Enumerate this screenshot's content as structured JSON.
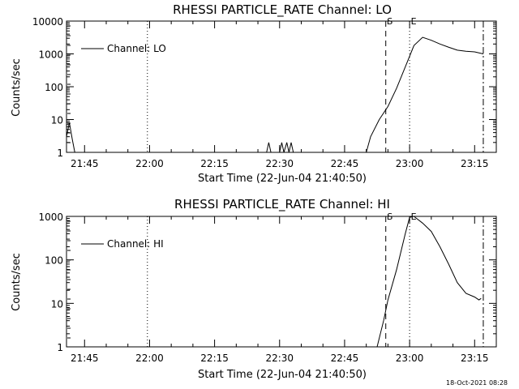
{
  "chart_data": [
    {
      "type": "line",
      "title": "RHESSI PARTICLE_RATE Channel: LO",
      "xlabel": "Start Time (22-Jun-04 21:40:50)",
      "ylabel": "Counts/sec",
      "yscale": "log",
      "ylim": [
        1,
        10000
      ],
      "xlim": [
        "21:40:50",
        "23:20:00"
      ],
      "x_tick_labels": [
        "21:45",
        "22:00",
        "22:15",
        "22:30",
        "22:45",
        "23:00",
        "23:15"
      ],
      "y_tick_labels": [
        "1",
        "10",
        "100",
        "1000",
        "10000"
      ],
      "legend": {
        "placement": "top-left",
        "entries": [
          "Channel: LO"
        ]
      },
      "markers": [
        {
          "label": "S",
          "time": "22:54:30",
          "style": "dashed"
        },
        {
          "label": "E",
          "time": "23:00:00",
          "style": "dotted"
        },
        {
          "label": "",
          "time": "21:59:30",
          "style": "dotted"
        },
        {
          "label": "",
          "time": "23:17:00",
          "style": "dash-dot"
        }
      ],
      "series": [
        {
          "name": "Channel: LO",
          "points": [
            [
              "21:40:50",
              3
            ],
            [
              "21:41:30",
              8
            ],
            [
              "21:42:10",
              2.5
            ],
            [
              "21:42:45",
              1
            ],
            [
              "22:27:00",
              1
            ],
            [
              "22:27:30",
              2
            ],
            [
              "22:28:00",
              1
            ],
            [
              "22:30:00",
              1
            ],
            [
              "22:30:30",
              2
            ],
            [
              "22:31:00",
              1
            ],
            [
              "22:31:40",
              2
            ],
            [
              "22:32:10",
              1
            ],
            [
              "22:32:40",
              2
            ],
            [
              "22:33:10",
              1
            ],
            [
              "22:50:00",
              1
            ],
            [
              "22:51:00",
              3
            ],
            [
              "22:53:00",
              10
            ],
            [
              "22:55:00",
              25
            ],
            [
              "22:57:00",
              90
            ],
            [
              "22:59:00",
              400
            ],
            [
              "23:01:00",
              1800
            ],
            [
              "23:03:00",
              3200
            ],
            [
              "23:05:00",
              2600
            ],
            [
              "23:07:00",
              2000
            ],
            [
              "23:09:00",
              1600
            ],
            [
              "23:11:00",
              1300
            ],
            [
              "23:13:00",
              1200
            ],
            [
              "23:15:00",
              1150
            ],
            [
              "23:17:00",
              1000
            ]
          ]
        }
      ]
    },
    {
      "type": "line",
      "title": "RHESSI PARTICLE_RATE Channel: HI",
      "xlabel": "Start Time (22-Jun-04 21:40:50)",
      "ylabel": "Counts/sec",
      "yscale": "log",
      "ylim": [
        1,
        1000
      ],
      "xlim": [
        "21:40:50",
        "23:20:00"
      ],
      "x_tick_labels": [
        "21:45",
        "22:00",
        "22:15",
        "22:30",
        "22:45",
        "23:00",
        "23:15"
      ],
      "y_tick_labels": [
        "1",
        "10",
        "100",
        "1000"
      ],
      "legend": {
        "placement": "top-left",
        "entries": [
          "Channel: HI"
        ]
      },
      "markers": [
        {
          "label": "S",
          "time": "22:54:30",
          "style": "dashed"
        },
        {
          "label": "E",
          "time": "23:00:00",
          "style": "dotted"
        },
        {
          "label": "",
          "time": "21:59:30",
          "style": "dotted"
        },
        {
          "label": "",
          "time": "23:17:00",
          "style": "dash-dot"
        }
      ],
      "series": [
        {
          "name": "Channel: HI",
          "points": [
            [
              "22:52:30",
              1
            ],
            [
              "22:54:00",
              4
            ],
            [
              "22:55:00",
              12
            ],
            [
              "22:57:00",
              60
            ],
            [
              "22:59:00",
              400
            ],
            [
              "23:00:00",
              950
            ],
            [
              "23:01:00",
              1000
            ],
            [
              "23:03:00",
              700
            ],
            [
              "23:05:00",
              450
            ],
            [
              "23:07:00",
              200
            ],
            [
              "23:09:00",
              80
            ],
            [
              "23:11:00",
              30
            ],
            [
              "23:13:00",
              17
            ],
            [
              "23:15:00",
              14
            ],
            [
              "23:16:00",
              12
            ],
            [
              "23:16:30",
              13
            ]
          ]
        }
      ]
    }
  ],
  "footer": {
    "timestamp": "18-Oct-2021 08:28"
  }
}
